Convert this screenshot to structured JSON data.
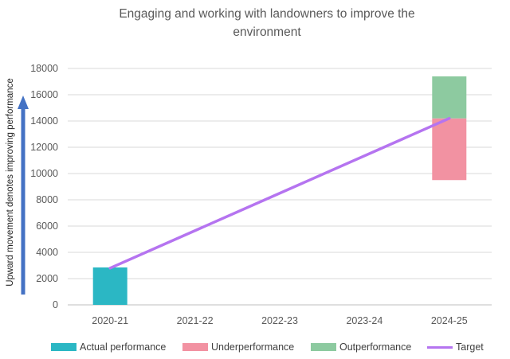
{
  "chart_data": {
    "type": "bar",
    "title_line1": "Engaging and working with landowners to improve the",
    "title_line2": "environment",
    "ylabel": "Upward movement denotes improving performance",
    "xlabel": "",
    "categories": [
      "2020-21",
      "2021-22",
      "2022-23",
      "2023-24",
      "2024-25"
    ],
    "ylim": [
      0,
      18000
    ],
    "yticks": [
      0,
      2000,
      4000,
      6000,
      8000,
      10000,
      12000,
      14000,
      16000,
      18000
    ],
    "grid": true,
    "legend_position": "bottom",
    "series": [
      {
        "name": "Actual performance",
        "kind": "bar",
        "color": "#2BB7C4",
        "values": [
          2850,
          null,
          null,
          null,
          null
        ]
      },
      {
        "name": "Underperformance",
        "kind": "bar-range",
        "color": "#F292A2",
        "ranges": [
          null,
          null,
          null,
          null,
          [
            9500,
            14200
          ]
        ]
      },
      {
        "name": "Outperformance",
        "kind": "bar-range",
        "color": "#8DCAA0",
        "ranges": [
          null,
          null,
          null,
          null,
          [
            14200,
            17400
          ]
        ]
      },
      {
        "name": "Target",
        "kind": "line",
        "color": "#B574F0",
        "points": [
          {
            "x": "2020-21",
            "y": 2800
          },
          {
            "x": "2024-25",
            "y": 14200
          }
        ]
      }
    ],
    "arrow_color": "#4472C4"
  }
}
